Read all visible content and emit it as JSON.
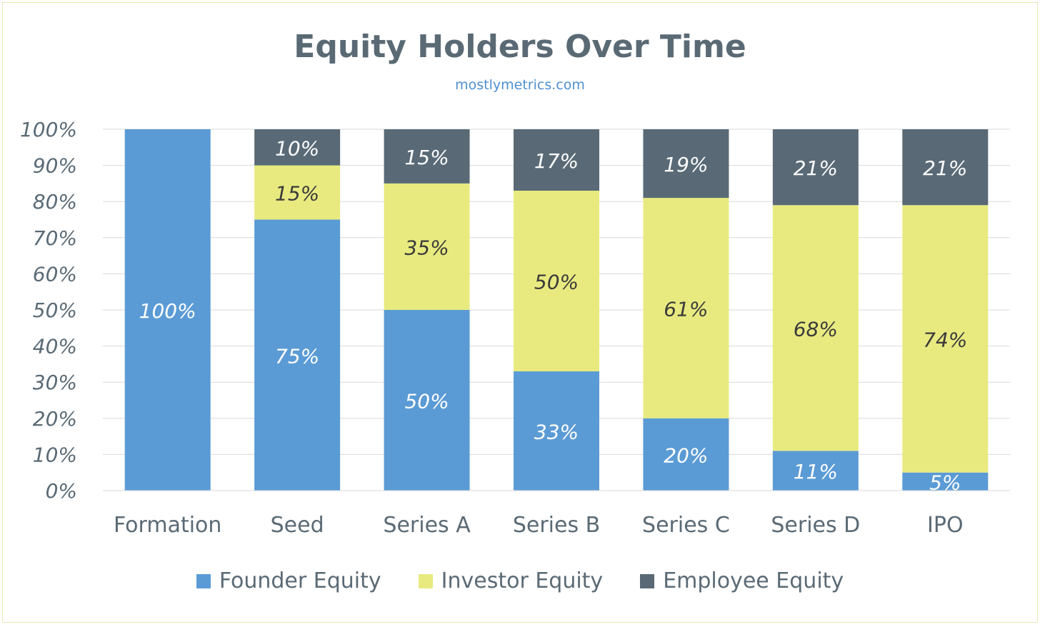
{
  "chart_data": {
    "type": "bar",
    "stacked": true,
    "title": "Equity Holders Over Time",
    "subtitle": "mostlymetrics.com",
    "categories": [
      "Formation",
      "Seed",
      "Series A",
      "Series B",
      "Series C",
      "Series D",
      "IPO"
    ],
    "series": [
      {
        "name": "Founder Equity",
        "color": "#5b9bd5",
        "values": [
          100,
          75,
          50,
          33,
          20,
          11,
          5
        ],
        "labels": [
          "100%",
          "75%",
          "50%",
          "33%",
          "20%",
          "11%",
          "5%"
        ]
      },
      {
        "name": "Investor Equity",
        "color": "#e8ea80",
        "values": [
          0,
          15,
          35,
          50,
          61,
          68,
          74
        ],
        "labels": [
          "",
          "15%",
          "35%",
          "50%",
          "61%",
          "68%",
          "74%"
        ]
      },
      {
        "name": "Employee Equity",
        "color": "#596a76",
        "values": [
          0,
          10,
          15,
          17,
          19,
          21,
          21
        ],
        "labels": [
          "",
          "10%",
          "15%",
          "17%",
          "19%",
          "21%",
          "21%"
        ]
      }
    ],
    "ylim": [
      0,
      100
    ],
    "yticks": [
      "0%",
      "10%",
      "20%",
      "30%",
      "40%",
      "50%",
      "60%",
      "70%",
      "80%",
      "90%",
      "100%"
    ],
    "grid": true,
    "legend_position": "bottom",
    "xlabel": "",
    "ylabel": ""
  }
}
